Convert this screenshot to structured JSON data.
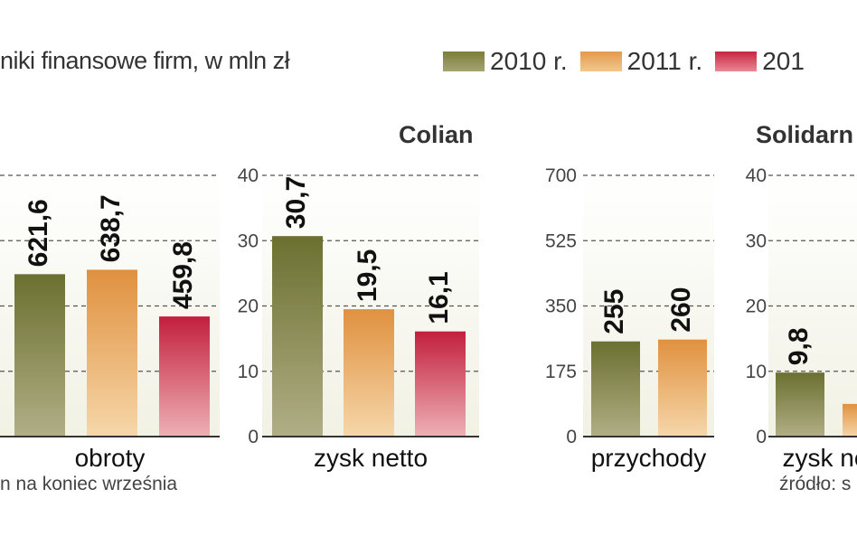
{
  "subtitle": "niki finansowe firm, w mln zł",
  "legend": [
    {
      "label": "2010 r.",
      "color": "#7a7d3a"
    },
    {
      "label": "2011 r.",
      "color": "#e39a4e"
    },
    {
      "label": "201",
      "color": "#c8243f"
    }
  ],
  "companies": {
    "colian": "Colian",
    "solidarnosc": "Solidarn"
  },
  "footnotes": {
    "left": "n na koniec września",
    "right": "źródło: s"
  },
  "chart_data": [
    {
      "type": "bar",
      "categories": [
        "obroty"
      ],
      "series": [
        {
          "name": "2010 r.",
          "values": [
            621.6
          ]
        },
        {
          "name": "2011 r.",
          "values": [
            638.7
          ]
        },
        {
          "name": "201",
          "values": [
            459.8
          ]
        }
      ],
      "value_labels": [
        "621,6",
        "638,7",
        "459,8"
      ],
      "xlabel": "obroty",
      "ylim": [
        0,
        1000
      ],
      "grid": true
    },
    {
      "type": "bar",
      "categories": [
        "zysk netto"
      ],
      "series": [
        {
          "name": "2010 r.",
          "values": [
            30.7
          ]
        },
        {
          "name": "2011 r.",
          "values": [
            19.5
          ]
        },
        {
          "name": "201",
          "values": [
            16.1
          ]
        }
      ],
      "value_labels": [
        "30,7",
        "19,5",
        "16,1"
      ],
      "xlabel": "zysk netto",
      "ylim": [
        0,
        40
      ],
      "yticks": [
        "0",
        "10",
        "20",
        "30",
        "40"
      ],
      "grid": true
    },
    {
      "type": "bar",
      "categories": [
        "przychody"
      ],
      "series": [
        {
          "name": "2010 r.",
          "values": [
            255
          ]
        },
        {
          "name": "2011 r.",
          "values": [
            260
          ]
        }
      ],
      "value_labels": [
        "255",
        "260"
      ],
      "xlabel": "przychody",
      "ylim": [
        0,
        700
      ],
      "yticks": [
        "0",
        "175",
        "350",
        "525",
        "700"
      ],
      "grid": true
    },
    {
      "type": "bar",
      "categories": [
        "zysk ne"
      ],
      "series": [
        {
          "name": "2010 r.",
          "values": [
            9.8
          ]
        },
        {
          "name": "2011 r.",
          "values": [
            5
          ]
        }
      ],
      "value_labels": [
        "9,8",
        ""
      ],
      "xlabel": "zysk ne",
      "ylim": [
        0,
        40
      ],
      "yticks": [
        "0",
        "10",
        "20",
        "30",
        "40"
      ],
      "grid": true
    }
  ]
}
